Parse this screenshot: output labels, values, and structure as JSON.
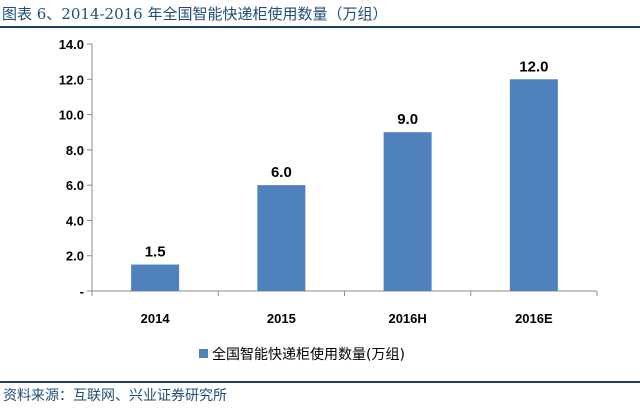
{
  "figure": {
    "title": "图表 6、2014-2016 年全国智能快递柜使用数量（万组）",
    "source": "资料来源：互联网、兴业证券研究所"
  },
  "chart_data": {
    "type": "bar",
    "categories": [
      "2014",
      "2015",
      "2016H",
      "2016E"
    ],
    "series": [
      {
        "name": "全国智能快递柜使用数量(万组)",
        "values": [
          1.5,
          6.0,
          9.0,
          12.0
        ]
      }
    ],
    "data_labels": [
      "1.5",
      "6.0",
      "9.0",
      "12.0"
    ],
    "ylim": [
      0,
      14
    ],
    "yticks": [
      0,
      2,
      4,
      6,
      8,
      10,
      12,
      14
    ],
    "ytick_labels": [
      "-",
      "2.0",
      "4.0",
      "6.0",
      "8.0",
      "10.0",
      "12.0",
      "14.0"
    ],
    "grid": false,
    "legend_position": "bottom",
    "colors": {
      "bar": "#4f81bd",
      "axis": "#8c8c8c",
      "text": "#000000"
    }
  }
}
